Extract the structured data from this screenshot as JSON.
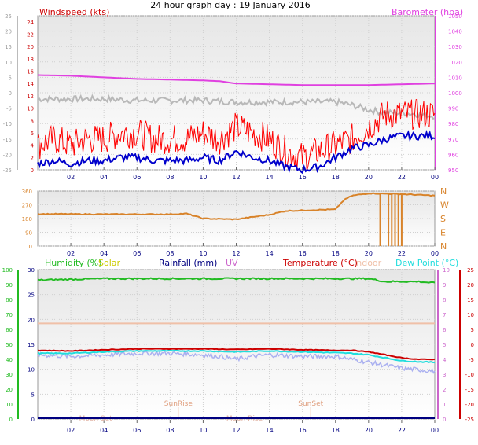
{
  "title": "24 hour graph day : 19 January 2016",
  "colors": {
    "wind": "#ff0000",
    "gust": "#0000cc",
    "baro": "#e040e0",
    "temp_grey": "#b8b8b8",
    "dir": "#d8832a",
    "humidity": "#22bb22",
    "solar": "#cccc00",
    "rain": "#000080",
    "uv": "#cc66cc",
    "temp": "#cc0000",
    "indoor": "#f0c0a8",
    "dew": "#22dddd",
    "rainlight": "#aab0f0"
  },
  "chart_data": [
    {
      "type": "line",
      "title": "24 hour graph day : 19 January 2016",
      "left_axis_label": "Windspeed (kts)",
      "right_axis_label": "Barometer (hpa)",
      "x_ticks": [
        "02",
        "04",
        "06",
        "08",
        "10",
        "12",
        "14",
        "16",
        "18",
        "20",
        "22",
        "00"
      ],
      "xlim_hours": [
        0,
        24
      ],
      "far_left_ticks": [
        "25",
        "20",
        "15",
        "10",
        "5",
        "0",
        "-5",
        "-10",
        "-15",
        "-20",
        "-25"
      ],
      "left_ticks": [
        "24",
        "22",
        "20",
        "18",
        "16",
        "14",
        "12",
        "10",
        "8",
        "6",
        "4",
        "2",
        "0"
      ],
      "ylim_left": [
        0,
        25
      ],
      "right_ticks": [
        "1050",
        "1040",
        "1030",
        "1020",
        "1010",
        "1000",
        "990",
        "980",
        "970",
        "960",
        "950"
      ],
      "ylim_right": [
        950,
        1050
      ],
      "series": [
        {
          "name": "Barometer (hpa)",
          "axis": "right",
          "x": [
            0,
            2,
            4,
            6,
            8,
            10,
            11,
            12,
            14,
            16,
            18,
            20,
            22,
            24
          ],
          "values": [
            1011.5,
            1011,
            1010,
            1009,
            1008.5,
            1008,
            1007.5,
            1006,
            1005.5,
            1005,
            1005,
            1005,
            1005.5,
            1006
          ]
        },
        {
          "axis": "far_left",
          "x": [
            0,
            2,
            4,
            6,
            8,
            10,
            12,
            14,
            16,
            18,
            19,
            20,
            21,
            22,
            23,
            24
          ],
          "values": [
            -2,
            -2,
            -2,
            -2.5,
            -2.5,
            -2.5,
            -3,
            -3,
            -3,
            -3,
            -4,
            -5.5,
            -6.5,
            -6.5,
            -7,
            -7.5
          ]
        },
        {
          "name": "Windspeed (kts)",
          "axis": "left",
          "x": [
            0,
            1,
            2,
            3,
            4,
            5,
            6,
            7,
            8,
            9,
            10,
            11,
            12,
            13,
            14,
            15,
            16,
            17,
            18,
            19,
            20,
            21,
            22,
            23,
            24
          ],
          "values": [
            4,
            5,
            4,
            5,
            5,
            6,
            6,
            5,
            5,
            5,
            6,
            5,
            7,
            6,
            5,
            3,
            2,
            3,
            4,
            5,
            7,
            9,
            9,
            9,
            9
          ]
        },
        {
          "axis": "left",
          "x": [
            0,
            1,
            2,
            3,
            4,
            5,
            6,
            7,
            8,
            9,
            10,
            11,
            12,
            13,
            14,
            15,
            16,
            17,
            18,
            19,
            20,
            21,
            22,
            23,
            24
          ],
          "values": [
            1,
            1.5,
            1,
            1.5,
            1.5,
            2,
            2,
            1.5,
            1.5,
            1.5,
            2,
            1.5,
            3,
            2,
            1.5,
            0.5,
            0,
            0.5,
            2,
            3.5,
            4,
            5,
            5.5,
            5.5,
            5.5
          ]
        }
      ]
    },
    {
      "type": "line",
      "x_ticks": [
        "02",
        "04",
        "06",
        "08",
        "10",
        "12",
        "14",
        "16",
        "18",
        "20",
        "22",
        "00"
      ],
      "left_ticks": [
        "360",
        "270",
        "180",
        "90",
        "0"
      ],
      "ylim": [
        0,
        360
      ],
      "right_labels": [
        "N",
        "W",
        "S",
        "E",
        "N"
      ],
      "series": [
        {
          "x": [
            0,
            4,
            8,
            9,
            10,
            12,
            14,
            15,
            18,
            18.5,
            19,
            20,
            22,
            24
          ],
          "values": [
            210,
            208,
            208,
            212,
            180,
            175,
            205,
            230,
            240,
            300,
            330,
            345,
            340,
            330
          ]
        }
      ]
    },
    {
      "type": "line",
      "legend": [
        "Humidity (%)",
        "Solar",
        "Rainfall (mm)",
        "UV",
        "Temperature (°C)",
        "Indoor",
        "Dew Point (°C)"
      ],
      "x_ticks": [
        "02",
        "04",
        "06",
        "08",
        "10",
        "12",
        "14",
        "16",
        "18",
        "20",
        "22",
        "00"
      ],
      "far_left_ticks": [
        "100",
        "90",
        "80",
        "70",
        "60",
        "50",
        "40",
        "30",
        "20",
        "10",
        "0"
      ],
      "left_ticks": [
        "30",
        "25",
        "20",
        "15",
        "10",
        "5",
        "0"
      ],
      "ylim_left": [
        0,
        30
      ],
      "right_ticks": [
        "10",
        "9",
        "8",
        "7",
        "6",
        "5",
        "4",
        "3",
        "2",
        "1",
        "0"
      ],
      "far_right_ticks": [
        "25",
        "20",
        "15",
        "10",
        "5",
        "0",
        "-5",
        "-10",
        "-15",
        "-20",
        "-25"
      ],
      "ylim_far_right": [
        -25,
        25
      ],
      "annotations": [
        "SunRise",
        "SunSet",
        "Moon Set",
        "Moon Rise"
      ],
      "sunrise_hour": 8.5,
      "sunset_hour": 16.5,
      "series": [
        {
          "name": "Humidity (%)",
          "axis": "far_left",
          "x": [
            0,
            2,
            4,
            6,
            8,
            10,
            12,
            14,
            16,
            18,
            20,
            21,
            22,
            23,
            24
          ],
          "values": [
            93,
            93.5,
            94,
            94,
            94,
            94,
            94,
            94,
            94,
            94,
            94,
            92,
            92,
            92,
            91
          ]
        },
        {
          "name": "Indoor",
          "axis": "far_right",
          "x": [
            0,
            24
          ],
          "values": [
            7,
            7
          ]
        },
        {
          "name": "Temperature (°C)",
          "axis": "far_right",
          "x": [
            0,
            2,
            4,
            6,
            8,
            10,
            12,
            14,
            16,
            18,
            19,
            20,
            21,
            22,
            23,
            24
          ],
          "values": [
            -2,
            -2.2,
            -1.8,
            -1.5,
            -1.5,
            -1.5,
            -1.7,
            -1.5,
            -1.8,
            -2,
            -2,
            -2.5,
            -3.5,
            -4.5,
            -5,
            -5
          ]
        },
        {
          "name": "Dew Point (°C)",
          "axis": "far_right",
          "x": [
            0,
            2,
            4,
            6,
            8,
            10,
            12,
            14,
            16,
            18,
            19,
            20,
            21,
            22,
            23,
            24
          ],
          "values": [
            -3,
            -3,
            -2.5,
            -2.2,
            -2.2,
            -2.2,
            -2.5,
            -2.2,
            -2.5,
            -2.8,
            -3,
            -3.5,
            -4.5,
            -5.5,
            -5.8,
            -6
          ]
        },
        {
          "axis": "far_right",
          "x": [
            0,
            2,
            4,
            6,
            8,
            10,
            11,
            12,
            13,
            14,
            16,
            18,
            19,
            20,
            21,
            22,
            23,
            24
          ],
          "values": [
            -3.5,
            -4,
            -3.5,
            -3,
            -3,
            -3.5,
            -4,
            -5,
            -4,
            -3.5,
            -4,
            -4,
            -5,
            -6,
            -7,
            -8,
            -8.5,
            -9
          ]
        }
      ]
    }
  ]
}
